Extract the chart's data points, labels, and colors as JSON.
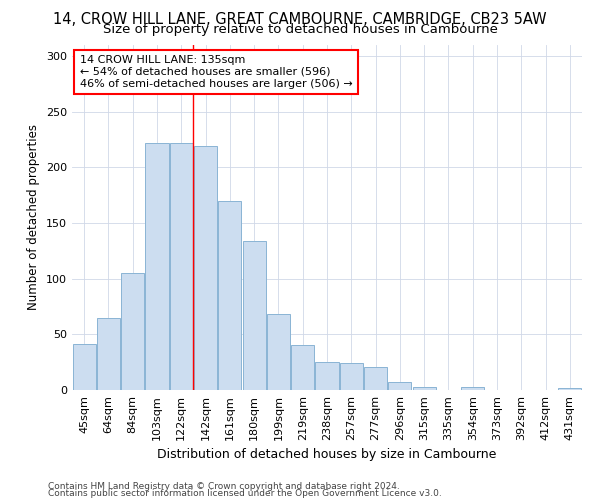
{
  "title": "14, CROW HILL LANE, GREAT CAMBOURNE, CAMBRIDGE, CB23 5AW",
  "subtitle": "Size of property relative to detached houses in Cambourne",
  "xlabel": "Distribution of detached houses by size in Cambourne",
  "ylabel": "Number of detached properties",
  "categories": [
    "45sqm",
    "64sqm",
    "84sqm",
    "103sqm",
    "122sqm",
    "142sqm",
    "161sqm",
    "180sqm",
    "199sqm",
    "219sqm",
    "238sqm",
    "257sqm",
    "277sqm",
    "296sqm",
    "315sqm",
    "335sqm",
    "354sqm",
    "373sqm",
    "392sqm",
    "412sqm",
    "431sqm"
  ],
  "values": [
    41,
    65,
    105,
    222,
    222,
    219,
    170,
    134,
    68,
    40,
    25,
    24,
    21,
    7,
    3,
    0,
    3,
    0,
    0,
    0,
    2
  ],
  "bar_color": "#ccddf0",
  "bar_edge_color": "#8ab4d4",
  "grid_color": "#d0d8e8",
  "background_color": "#ffffff",
  "vline_x": 4.5,
  "vline_color": "red",
  "annotation_text": "14 CROW HILL LANE: 135sqm\n← 54% of detached houses are smaller (596)\n46% of semi-detached houses are larger (506) →",
  "annotation_box_color": "white",
  "annotation_box_edge_color": "red",
  "footnote1": "Contains HM Land Registry data © Crown copyright and database right 2024.",
  "footnote2": "Contains public sector information licensed under the Open Government Licence v3.0.",
  "ylim": [
    0,
    310
  ],
  "yticks": [
    0,
    50,
    100,
    150,
    200,
    250,
    300
  ],
  "title_fontsize": 10.5,
  "subtitle_fontsize": 9.5,
  "ylabel_fontsize": 8.5,
  "xlabel_fontsize": 9,
  "tick_fontsize": 8,
  "annot_fontsize": 8,
  "footnote_fontsize": 6.5
}
